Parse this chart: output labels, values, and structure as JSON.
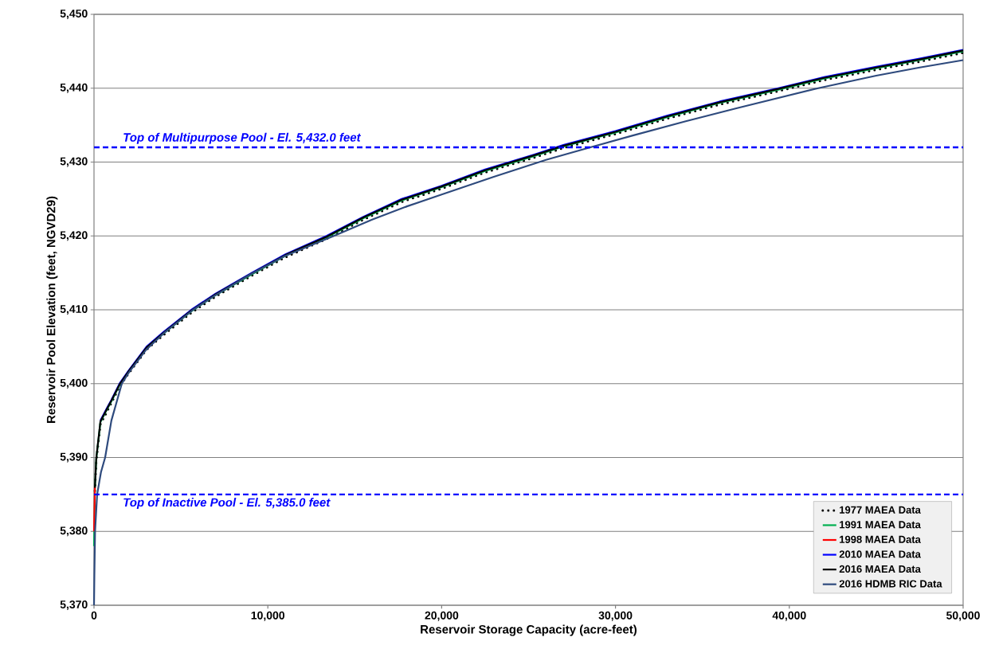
{
  "chart_data": {
    "type": "line",
    "xlabel": "Reservoir Storage Capacity (acre-feet)",
    "ylabel": "Reservoir Pool Elevation (feet, NGVD29)",
    "x": [
      0,
      50,
      130,
      370,
      700,
      1000,
      1470,
      2000,
      3020,
      4000,
      5600,
      7000,
      9070,
      11000,
      13380,
      15500,
      17700,
      20000,
      22500,
      25300,
      27000,
      30000,
      33000,
      36000,
      39370,
      42000,
      45000,
      47500,
      50000
    ],
    "series": [
      {
        "name": "1977 MAEA Data",
        "color": "#000000",
        "line_style": "dotted",
        "values": [
          null,
          5385.5,
          5389.5,
          5394.5,
          5396,
          5397.4,
          5399.6,
          5401.4,
          5404.6,
          5406.6,
          5409.6,
          5411.8,
          5414.6,
          5417.1,
          5419.6,
          5422.2,
          5424.6,
          5426.4,
          5428.6,
          5430.6,
          5431.9,
          5433.8,
          5435.9,
          5437.8,
          5439.6,
          5441.1,
          5442.5,
          5443.6,
          5444.8
        ]
      },
      {
        "name": "1991 MAEA Data",
        "color": "#00b050",
        "line_style": "solid",
        "values": [
          5378,
          5385.8,
          5389.8,
          5394.8,
          5396.3,
          5397.6,
          5399.8,
          5401.6,
          5404.8,
          5406.8,
          5409.8,
          5412,
          5414.8,
          5417.3,
          5419.8,
          5422.4,
          5424.8,
          5426.6,
          5428.8,
          5430.8,
          5432.1,
          5434,
          5436.1,
          5438,
          5439.8,
          5441.3,
          5442.7,
          5443.8,
          5445
        ]
      },
      {
        "name": "1998 MAEA Data",
        "color": "#ff0000",
        "line_style": "solid",
        "x": [
          0,
          50
        ],
        "values": [
          5380,
          5386
        ]
      },
      {
        "name": "2010 MAEA Data",
        "color": "#0000ff",
        "line_style": "solid",
        "values": [
          null,
          null,
          null,
          5395,
          5396.5,
          5397.8,
          5400,
          5401.8,
          5405,
          5407,
          5410,
          5412.2,
          5415,
          5417.5,
          5420,
          5422.6,
          5425,
          5426.8,
          5429,
          5431,
          5432.3,
          5434.2,
          5436.3,
          5438.2,
          5440,
          5441.5,
          5442.9,
          5444,
          5445.2
        ]
      },
      {
        "name": "2016 MAEA Data",
        "color": "#000000",
        "line_style": "solid",
        "values": [
          null,
          5385.9,
          5389.9,
          5394.9,
          5396.4,
          5397.7,
          5399.9,
          5401.7,
          5404.9,
          5406.9,
          5409.9,
          5412.1,
          5414.9,
          5417.4,
          5419.9,
          5422.5,
          5424.9,
          5426.7,
          5428.9,
          5430.9,
          5432.2,
          5434.1,
          5436.2,
          5438.1,
          5439.9,
          5441.4,
          5442.8,
          5443.9,
          5445.1
        ]
      },
      {
        "name": "2016 HDMB RIC Data",
        "color": "#2e4a7d",
        "line_style": "solid",
        "x": [
          0,
          20,
          60,
          180,
          400,
          640,
          1000,
          1600,
          2000,
          3000,
          4000,
          5700,
          7000,
          9000,
          11000,
          13800,
          16000,
          18000,
          20000,
          23000,
          26000,
          28550,
          31000,
          34000,
          37000,
          41660,
          45000,
          47500,
          50000
        ],
        "values": [
          5370,
          5374,
          5380,
          5385,
          5388,
          5390,
          5395,
          5400,
          5401.5,
          5404.6,
          5406.8,
          5410,
          5412,
          5414.8,
          5417.3,
          5420,
          5422.2,
          5424,
          5425.6,
          5428,
          5430.3,
          5432,
          5433.6,
          5435.5,
          5437.3,
          5440,
          5441.7,
          5442.8,
          5443.8
        ]
      }
    ],
    "xlim": [
      0,
      50000
    ],
    "ylim": [
      5370,
      5450
    ],
    "xticks": [
      0,
      {
        "value": 10000,
        "label": "10,000"
      },
      {
        "value": 20000,
        "label": "20,000"
      },
      {
        "value": 30000,
        "label": "30,000"
      },
      {
        "value": 40000,
        "label": "40,000"
      },
      {
        "value": 50000,
        "label": "50,000"
      }
    ],
    "yticks": [
      {
        "value": 5370,
        "label": "5,370"
      },
      {
        "value": 5380,
        "label": "5,380"
      },
      {
        "value": 5390,
        "label": "5,390"
      },
      {
        "value": 5400,
        "label": "5,400"
      },
      {
        "value": 5410,
        "label": "5,410"
      },
      {
        "value": 5420,
        "label": "5,420"
      },
      {
        "value": 5430,
        "label": "5,430"
      },
      {
        "value": 5440,
        "label": "5,440"
      },
      {
        "value": 5450,
        "label": "5,450"
      }
    ],
    "ref_lines": [
      {
        "axis": "y",
        "value": 5432,
        "label": "Top of Multipurpose Pool - El. 5,432.0 feet",
        "color": "#0000ff",
        "line_style": "dashed"
      },
      {
        "axis": "y",
        "value": 5385,
        "label": "Top of Inactive Pool - El. 5,385.0 feet",
        "color": "#0000ff",
        "line_style": "dashed"
      }
    ],
    "grid": "y",
    "legend": "bottom right",
    "marker": "none"
  }
}
